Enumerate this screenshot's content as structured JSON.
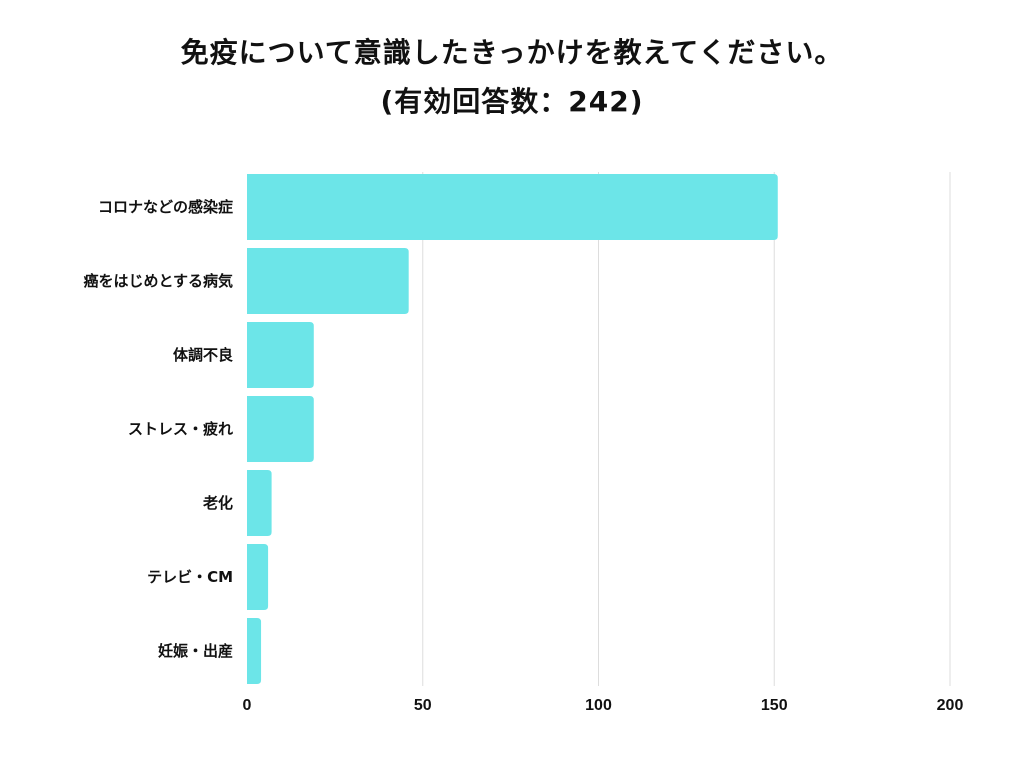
{
  "chart_data": {
    "type": "bar",
    "orientation": "horizontal",
    "title": "免疫について意識したきっかけを教えてください。",
    "subtitle": "(有効回答数：242)",
    "categories": [
      "コロナなどの感染症",
      "癌をはじめとする病気",
      "体調不良",
      "ストレス・疲れ",
      "老化",
      "テレビ・CM",
      "妊娠・出産"
    ],
    "values": [
      151,
      46,
      19,
      19,
      7,
      6,
      4
    ],
    "xlim": [
      0,
      200
    ],
    "xticks": [
      0,
      50,
      100,
      150,
      200
    ],
    "grid": true,
    "bar_color": "#6ce5e8",
    "grid_color": "#dddddd"
  }
}
